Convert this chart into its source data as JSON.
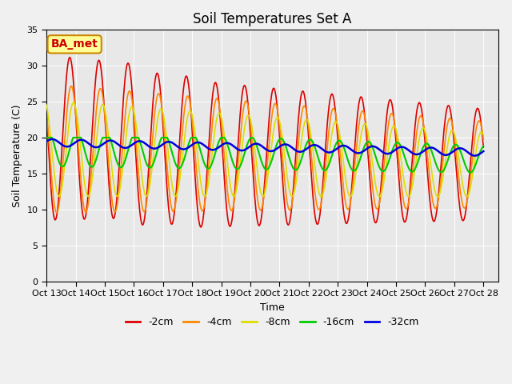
{
  "title": "Soil Temperatures Set A",
  "xlabel": "Time",
  "ylabel": "Soil Temperature (C)",
  "xlim": [
    0,
    15.5
  ],
  "ylim": [
    0,
    35
  ],
  "yticks": [
    0,
    5,
    10,
    15,
    20,
    25,
    30,
    35
  ],
  "xtick_labels": [
    "Oct 13",
    "Oct 14",
    "Oct 15",
    "Oct 16",
    "Oct 17",
    "Oct 18",
    "Oct 19",
    "Oct 20",
    "Oct 21",
    "Oct 22",
    "Oct 23",
    "Oct 24",
    "Oct 25",
    "Oct 26",
    "Oct 27",
    "Oct 28"
  ],
  "legend_labels": [
    "-2cm",
    "-4cm",
    "-8cm",
    "-16cm",
    "-32cm"
  ],
  "legend_colors": [
    "#dd0000",
    "#ff8800",
    "#dddd00",
    "#00cc00",
    "#0000dd"
  ],
  "line_widths": [
    1.2,
    1.2,
    1.2,
    1.5,
    1.8
  ],
  "background_color": "#e8e8e8",
  "plot_bg_color": "#e8e8e8",
  "annotation_text": "BA_met",
  "annotation_bg": "#ffff99",
  "annotation_border": "#cc8800"
}
